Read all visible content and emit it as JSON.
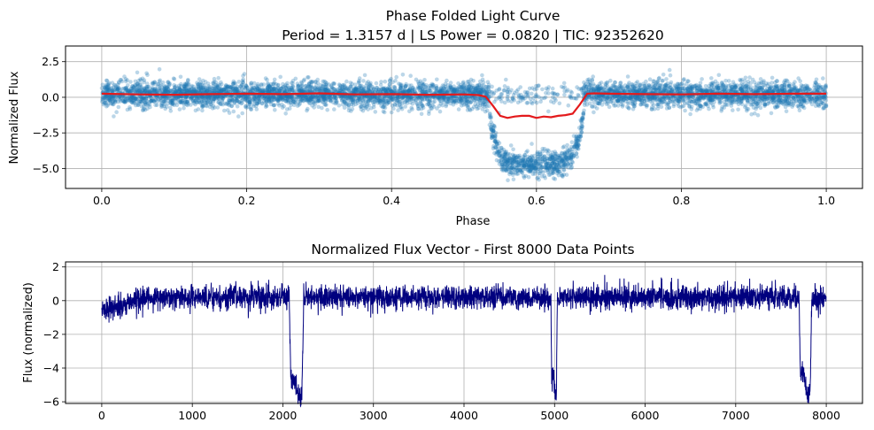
{
  "chart_data": [
    {
      "type": "scatter",
      "title": "Phase Folded Light Curve",
      "subtitle": "Period = 1.3157 d | LS Power = 0.0820 | TIC: 92352620",
      "xlabel": "Phase",
      "ylabel": "Normalized Flux",
      "xlim": [
        -0.05,
        1.05
      ],
      "ylim": [
        -6.4,
        3.6
      ],
      "xticks": [
        0.0,
        0.2,
        0.4,
        0.6,
        0.8,
        1.0
      ],
      "xtick_labels": [
        "0.0",
        "0.2",
        "0.4",
        "0.6",
        "0.8",
        "1.0"
      ],
      "yticks": [
        2.5,
        0.0,
        -2.5,
        -5.0
      ],
      "ytick_labels": [
        "2.5",
        "0.0",
        "−2.5",
        "−5.0"
      ],
      "grid": true,
      "series": [
        {
          "kind": "scatter",
          "color": "#1f77b4",
          "opacity": 0.3,
          "description_points": "dense phase-folded flux, baseline ~0.2 with scatter ~0.5, transit dip to ~-4.8 between phase 0.53 and 0.67",
          "n_points": 6000
        },
        {
          "kind": "line",
          "color": "#e31a1c",
          "x": [
            0.0,
            0.05,
            0.1,
            0.15,
            0.2,
            0.25,
            0.3,
            0.35,
            0.4,
            0.45,
            0.5,
            0.52,
            0.53,
            0.54,
            0.55,
            0.56,
            0.57,
            0.58,
            0.59,
            0.6,
            0.61,
            0.62,
            0.63,
            0.64,
            0.65,
            0.66,
            0.67,
            0.68,
            0.7,
            0.75,
            0.8,
            0.85,
            0.9,
            0.95,
            1.0
          ],
          "y": [
            0.25,
            0.2,
            0.18,
            0.22,
            0.25,
            0.22,
            0.28,
            0.2,
            0.22,
            0.18,
            0.2,
            0.15,
            0.05,
            -0.6,
            -1.3,
            -1.45,
            -1.35,
            -1.3,
            -1.3,
            -1.45,
            -1.35,
            -1.4,
            -1.3,
            -1.25,
            -1.15,
            -0.5,
            0.25,
            0.28,
            0.25,
            0.22,
            0.2,
            0.25,
            0.22,
            0.25,
            0.25
          ]
        }
      ]
    },
    {
      "type": "line",
      "title": "Normalized Flux Vector - First 8000 Data Points",
      "xlabel": "",
      "ylabel": "Flux (normalized)",
      "xlim": [
        -400,
        8400
      ],
      "ylim": [
        -6.1,
        2.3
      ],
      "xticks": [
        0,
        1000,
        2000,
        3000,
        4000,
        5000,
        6000,
        7000,
        8000
      ],
      "xtick_labels": [
        "0",
        "1000",
        "2000",
        "3000",
        "4000",
        "5000",
        "6000",
        "7000",
        "8000"
      ],
      "yticks": [
        2,
        0,
        -2,
        -4,
        -6
      ],
      "ytick_labels": [
        "2",
        "0",
        "−2",
        "−4",
        "−6"
      ],
      "grid": true,
      "color": "#00007f",
      "n_points": 8000,
      "baseline_segments": [
        {
          "x": [
            0,
            500
          ],
          "level": -0.55,
          "scatter": 0.35
        },
        {
          "x": [
            500,
            2060
          ],
          "level": 0.2,
          "scatter": 0.35
        },
        {
          "x": [
            2260,
            4950
          ],
          "level": 0.2,
          "scatter": 0.35
        },
        {
          "x": [
            5040,
            7700
          ],
          "level": 0.2,
          "scatter": 0.35
        },
        {
          "x": [
            7850,
            8000
          ],
          "level": 0.05,
          "scatter": 0.35
        }
      ],
      "transits": [
        {
          "start": 2070,
          "end": 2230,
          "depth": -5.1
        },
        {
          "start": 4960,
          "end": 5030,
          "depth": -5.0
        },
        {
          "start": 7700,
          "end": 7840,
          "depth": -4.9
        }
      ]
    }
  ]
}
